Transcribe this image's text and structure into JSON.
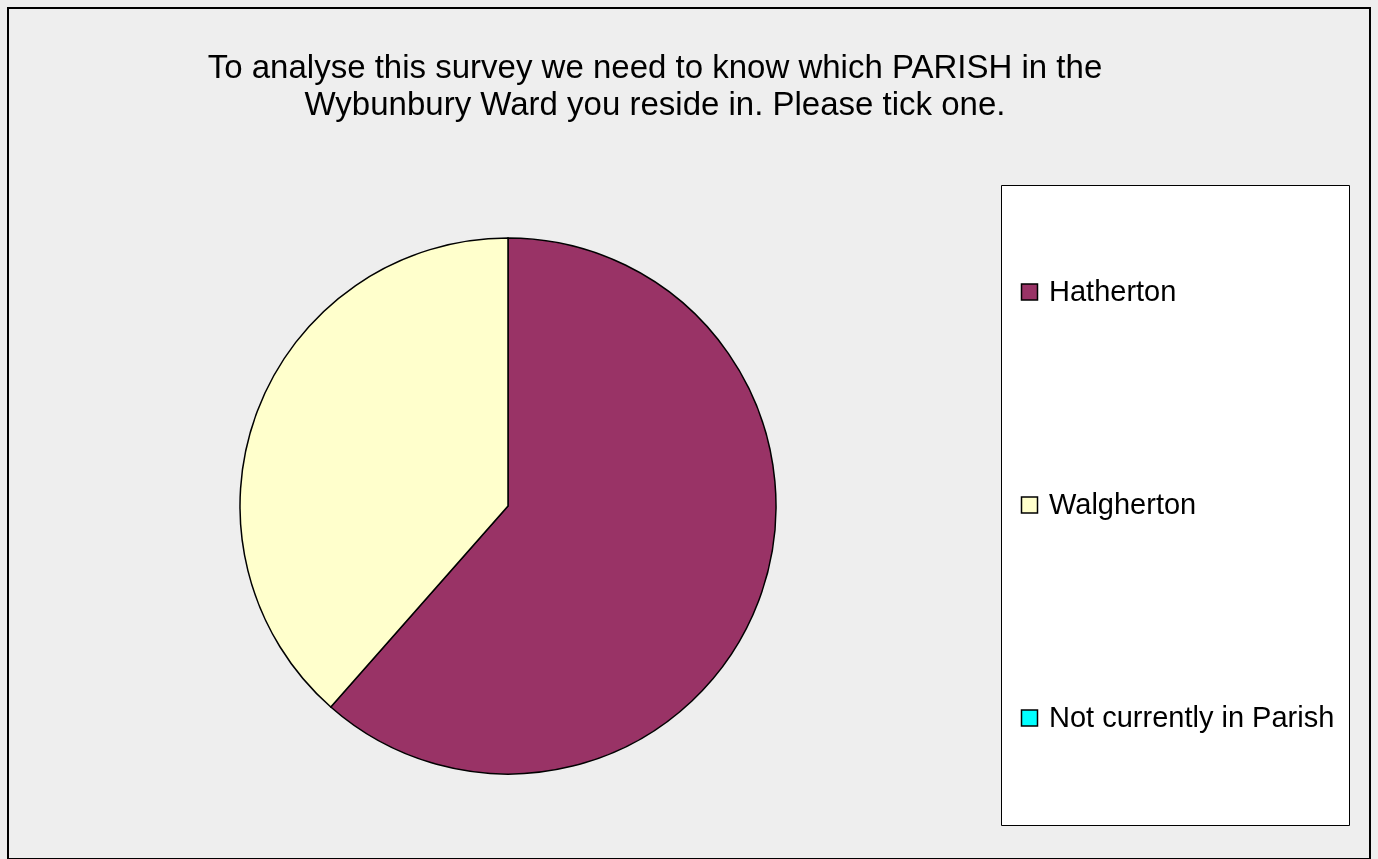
{
  "chart_data": {
    "type": "pie",
    "title": "To analyse this survey we need to know which PARISH in the\nWybunbury Ward you reside in. Please tick one.",
    "categories": [
      "Hatherton",
      "Walgherton",
      "Not currently in Parish"
    ],
    "values": [
      61.5,
      38.5,
      0
    ],
    "colors": [
      "#993366",
      "#ffffcc",
      "#00ffff"
    ],
    "legend": "right"
  }
}
